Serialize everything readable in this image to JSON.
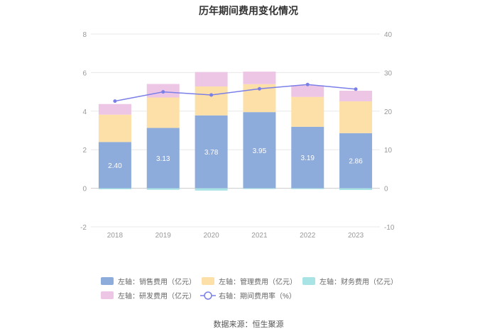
{
  "chart_data": {
    "type": "bar",
    "title": "历年期间费用变化情况",
    "categories": [
      "2018",
      "2019",
      "2020",
      "2021",
      "2022",
      "2023"
    ],
    "left_axis": {
      "ylim": [
        -2,
        8
      ],
      "ticks": [
        "-2",
        "0",
        "2",
        "4",
        "6",
        "8"
      ]
    },
    "right_axis": {
      "ylim": [
        -10,
        40
      ],
      "ticks": [
        "-10",
        "0",
        "10",
        "20",
        "30",
        "40"
      ]
    },
    "series": [
      {
        "name": "左轴：销售费用（亿元）",
        "kind": "bar",
        "axis": "left",
        "color": "#8eacdb",
        "values": [
          2.4,
          3.13,
          3.78,
          3.95,
          3.19,
          2.86
        ],
        "labels": [
          "2.40",
          "3.13",
          "3.78",
          "3.95",
          "3.19",
          "2.86"
        ]
      },
      {
        "name": "左轴：管理费用（亿元）",
        "kind": "bar",
        "axis": "left",
        "color": "#fde0a8",
        "values": [
          1.42,
          1.58,
          1.5,
          1.45,
          1.55,
          1.65
        ]
      },
      {
        "name": "左轴：财务费用（亿元）",
        "kind": "bar",
        "axis": "left",
        "color": "#a8e3e6",
        "values": [
          -0.05,
          -0.08,
          -0.12,
          -0.03,
          -0.04,
          -0.09
        ]
      },
      {
        "name": "左轴：研发费用（亿元）",
        "kind": "bar",
        "axis": "left",
        "color": "#edc5e5",
        "values": [
          0.55,
          0.7,
          0.75,
          0.65,
          0.6,
          0.55
        ]
      },
      {
        "name": "右轴：期间费用率（%）",
        "kind": "line",
        "axis": "right",
        "color": "#7b7fe8",
        "values": [
          22.6,
          25.0,
          24.2,
          25.8,
          26.9,
          25.7
        ]
      }
    ],
    "legend_position": "bottom",
    "grid": true
  },
  "source": "数据来源：恒生聚源"
}
